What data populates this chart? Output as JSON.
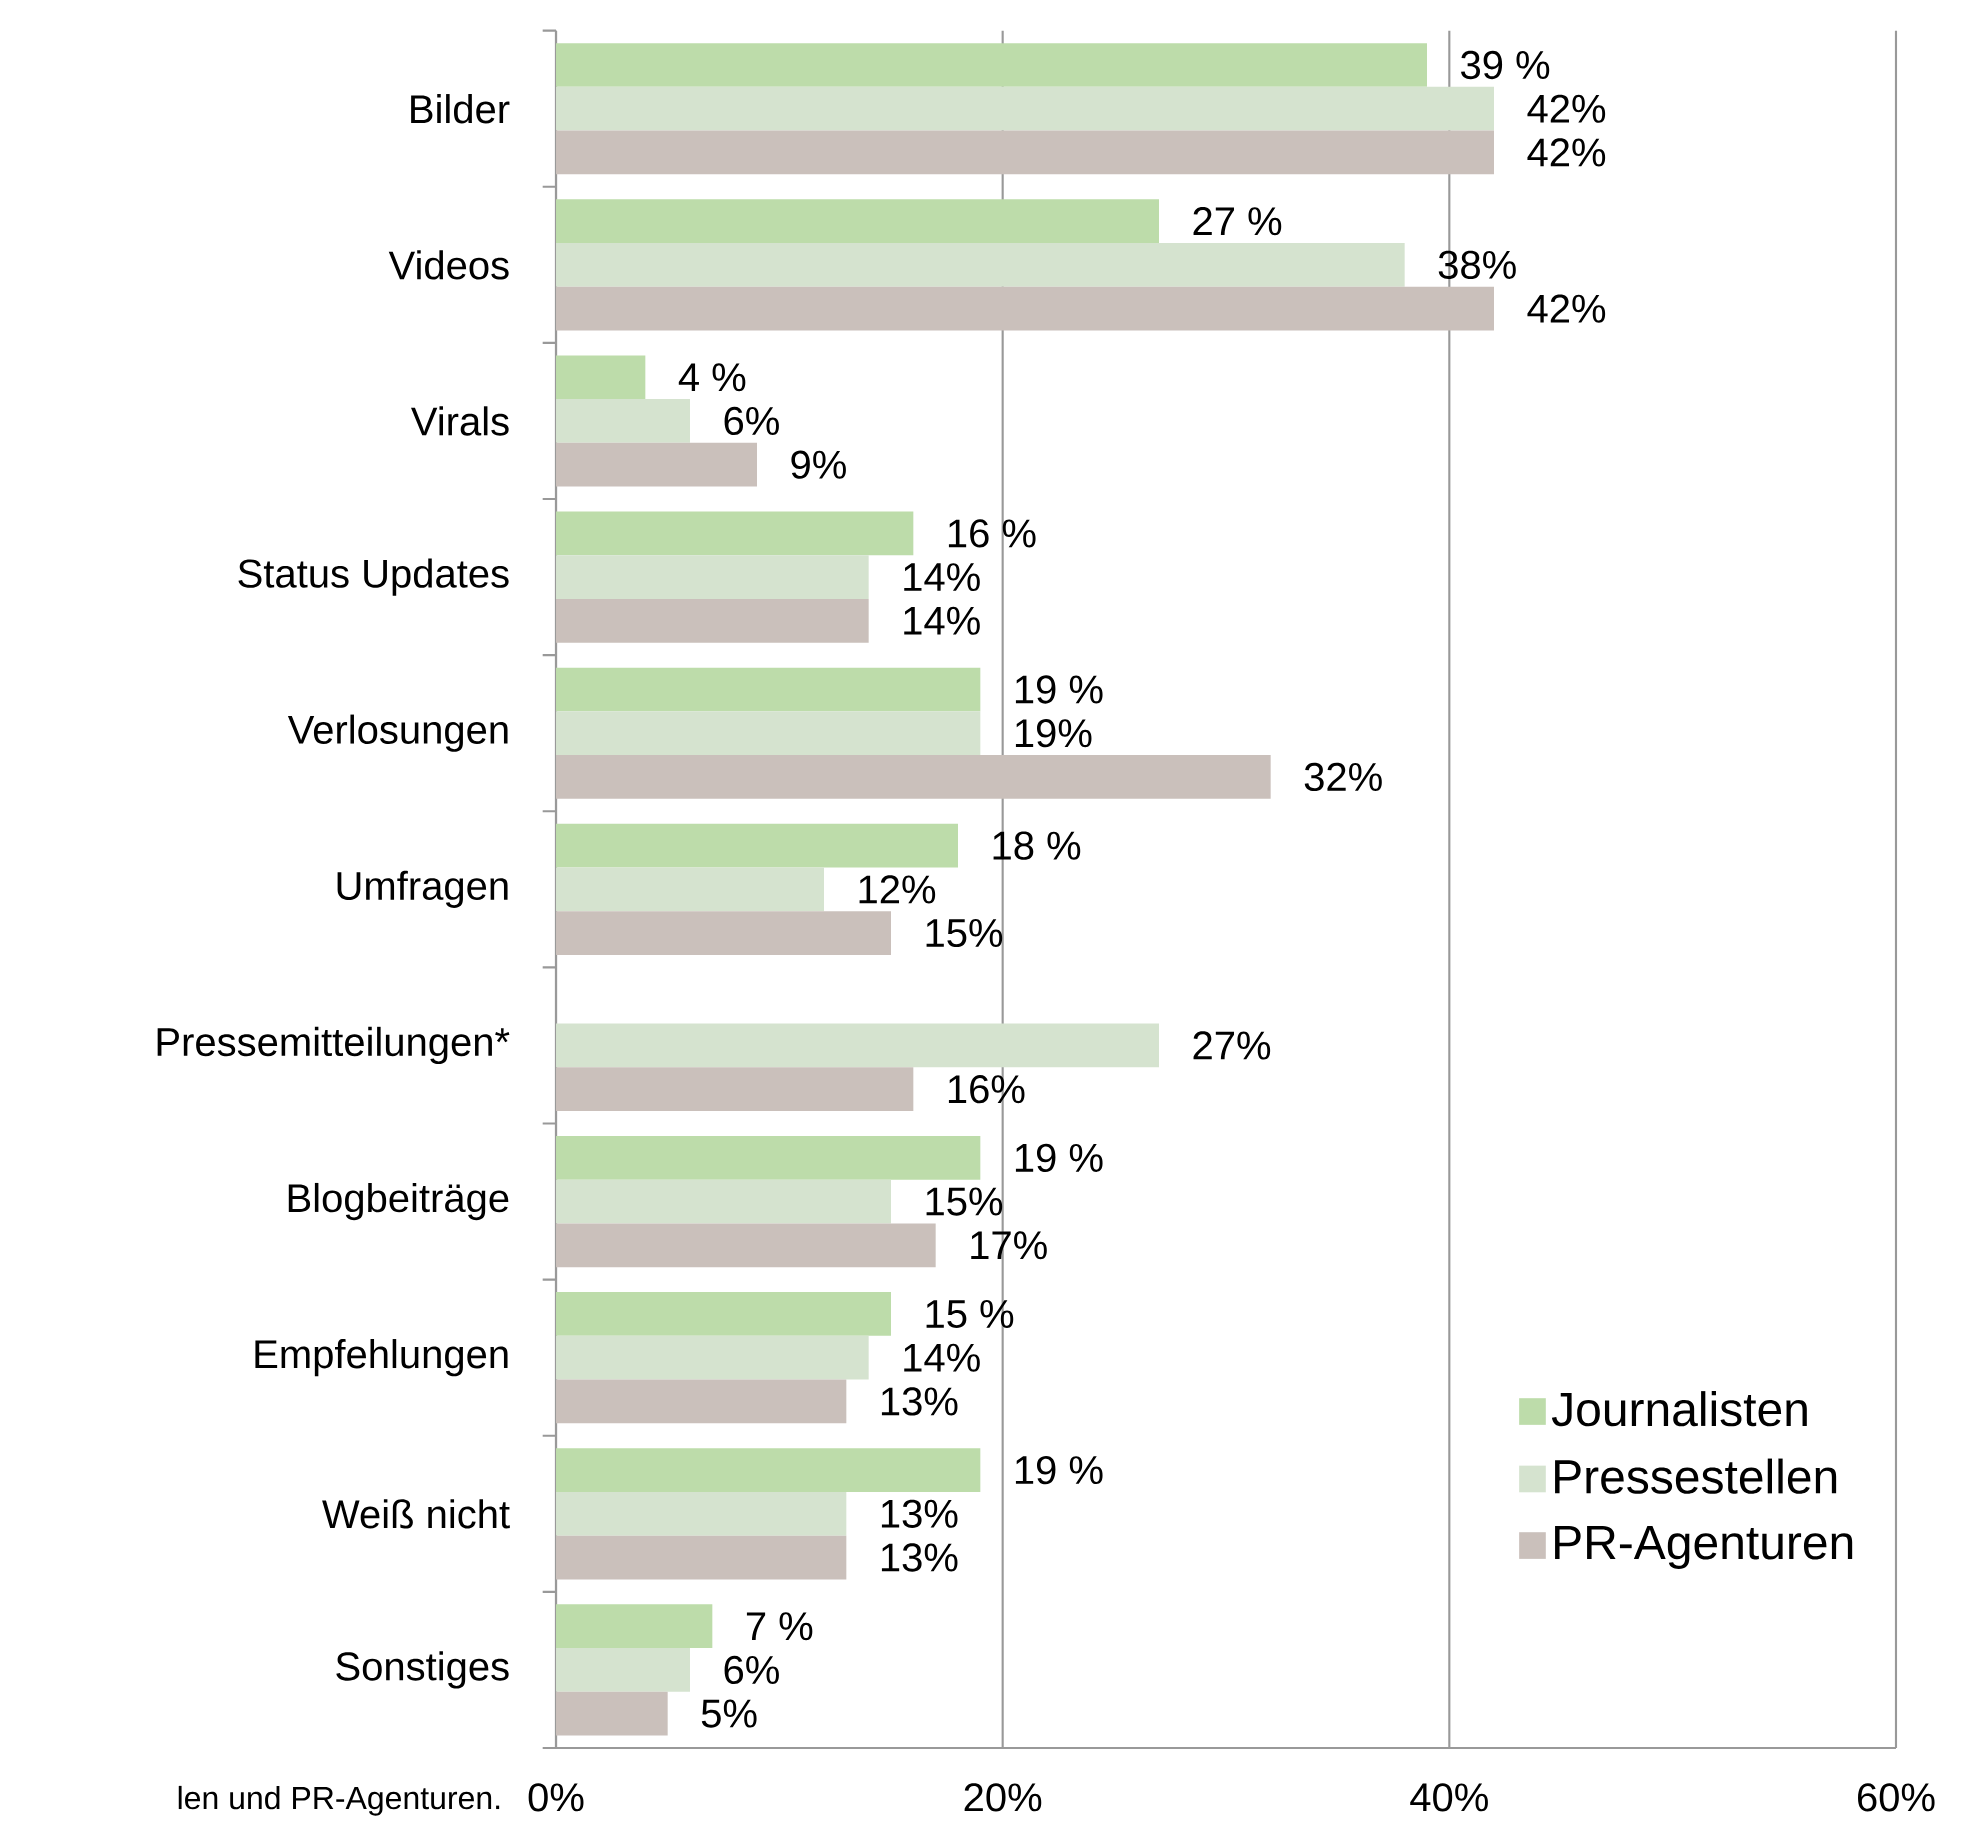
{
  "chart_data": {
    "type": "bar",
    "orientation": "horizontal",
    "categories": [
      "Bilder",
      "Videos",
      "Virals",
      "Status Updates",
      "Verlosungen",
      "Umfragen",
      "Pressemitteilungen*",
      "Blogbeiträge",
      "Empfehlungen",
      "Weiß nicht",
      "Sonstiges"
    ],
    "series": [
      {
        "name": "Journalisten",
        "color": "#bddcaa",
        "values": [
          39,
          27,
          4,
          16,
          19,
          18,
          null,
          19,
          15,
          19,
          7
        ],
        "value_labels": [
          "39 %",
          "27 %",
          "4 %",
          "16 %",
          "19 %",
          "18 %",
          null,
          "19 %",
          "15 %",
          "19 %",
          "7 %"
        ]
      },
      {
        "name": "Pressestellen",
        "color": "#d5e3cf",
        "values": [
          42,
          38,
          6,
          14,
          19,
          12,
          27,
          15,
          14,
          13,
          6
        ],
        "value_labels": [
          "42%",
          "38%",
          "6%",
          "14%",
          "19%",
          "12%",
          "27%",
          "15%",
          "14%",
          "13%",
          "6%"
        ]
      },
      {
        "name": "PR-Agenturen",
        "color": "#cac0bb",
        "values": [
          42,
          42,
          9,
          14,
          32,
          15,
          16,
          17,
          13,
          13,
          5
        ],
        "value_labels": [
          "42%",
          "42%",
          "9%",
          "14%",
          "32%",
          "15%",
          "16%",
          "17%",
          "13%",
          "13%",
          "5%"
        ]
      }
    ],
    "xlim": [
      0,
      60
    ],
    "xticks": [
      {
        "value": 0,
        "label": "0%"
      },
      {
        "value": 20,
        "label": "20%"
      },
      {
        "value": 40,
        "label": "40%"
      },
      {
        "value": 60,
        "label": "60%"
      }
    ],
    "grid": "x",
    "legend": "bottom right",
    "annotations": [
      "len und PR-Agenturen."
    ]
  }
}
